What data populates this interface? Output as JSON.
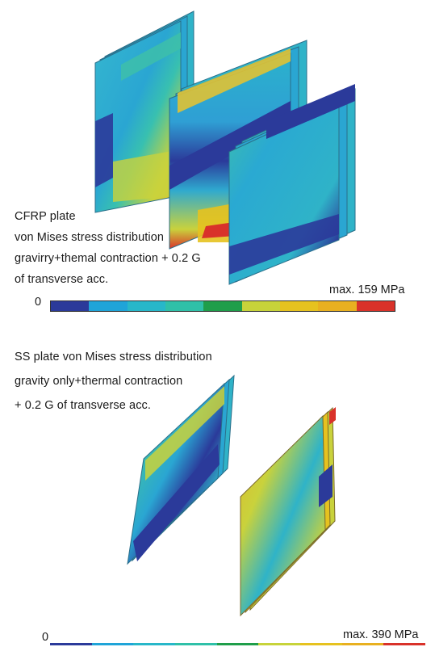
{
  "top_panel": {
    "caption_lines": [
      "CFRP plate",
      "von Mises stress distribution",
      "gravirry+themal contraction + 0.2 G",
      "of transverse acc."
    ],
    "scale_min": "0",
    "scale_max": "max. 159 MPa"
  },
  "bottom_panel": {
    "caption_lines": [
      "SS plate von Mises stress distribution",
      "gravity only+thermal contraction",
      "+ 0.2 G of transverse acc."
    ],
    "scale_min": "0",
    "scale_max": "max. 390 MPa"
  },
  "colorbar_colors": [
    "#2b3a9a",
    "#1fa4d8",
    "#27b7c9",
    "#2fc0a8",
    "#1f9e4a",
    "#c7d33a",
    "#e6c21f",
    "#e8b020",
    "#d9322a"
  ],
  "colors": {
    "low_stress": "#2b3a9a",
    "mid_stress": "#2fb3c8",
    "high_stress": "#d9322a"
  }
}
